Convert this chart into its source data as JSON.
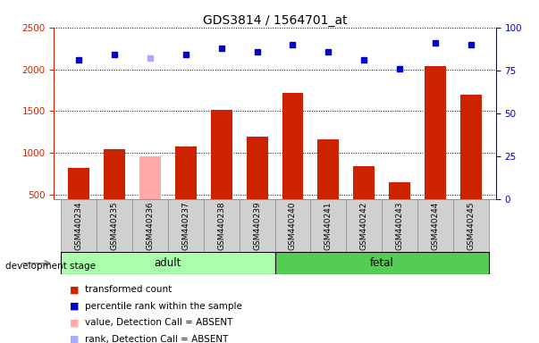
{
  "title": "GDS3814 / 1564701_at",
  "samples": [
    "GSM440234",
    "GSM440235",
    "GSM440236",
    "GSM440237",
    "GSM440238",
    "GSM440239",
    "GSM440240",
    "GSM440241",
    "GSM440242",
    "GSM440243",
    "GSM440244",
    "GSM440245"
  ],
  "bar_values": [
    820,
    1050,
    960,
    1080,
    1520,
    1190,
    1720,
    1160,
    840,
    650,
    2040,
    1700
  ],
  "bar_colors": [
    "#cc2200",
    "#cc2200",
    "#ffaaaa",
    "#cc2200",
    "#cc2200",
    "#cc2200",
    "#cc2200",
    "#cc2200",
    "#cc2200",
    "#cc2200",
    "#cc2200",
    "#cc2200"
  ],
  "rank_values": [
    81,
    84,
    82,
    84,
    88,
    86,
    90,
    86,
    81,
    76,
    91,
    90
  ],
  "rank_colors": [
    "#0000cc",
    "#0000cc",
    "#aaaaff",
    "#0000cc",
    "#0000cc",
    "#0000cc",
    "#0000cc",
    "#0000cc",
    "#0000cc",
    "#0000cc",
    "#0000cc",
    "#0000cc"
  ],
  "ylim_left": [
    450,
    2500
  ],
  "ylim_right": [
    0,
    100
  ],
  "yticks_left": [
    500,
    1000,
    1500,
    2000,
    2500
  ],
  "yticks_right": [
    0,
    25,
    50,
    75,
    100
  ],
  "groups": [
    {
      "label": "adult",
      "start": 0,
      "end": 5,
      "color": "#aaffaa"
    },
    {
      "label": "fetal",
      "start": 6,
      "end": 11,
      "color": "#55cc55"
    }
  ],
  "dev_stage_label": "development stage",
  "legend_items": [
    {
      "label": "transformed count",
      "color": "#cc2200"
    },
    {
      "label": "percentile rank within the sample",
      "color": "#0000cc"
    },
    {
      "label": "value, Detection Call = ABSENT",
      "color": "#ffaaaa"
    },
    {
      "label": "rank, Detection Call = ABSENT",
      "color": "#aaaaff"
    }
  ],
  "background_color": "#ffffff",
  "plot_bg_color": "#ffffff",
  "axis_left_color": "#cc2200",
  "axis_right_color": "#0000cc",
  "sample_box_color": "#d0d0d0",
  "sample_box_edge": "#888888"
}
